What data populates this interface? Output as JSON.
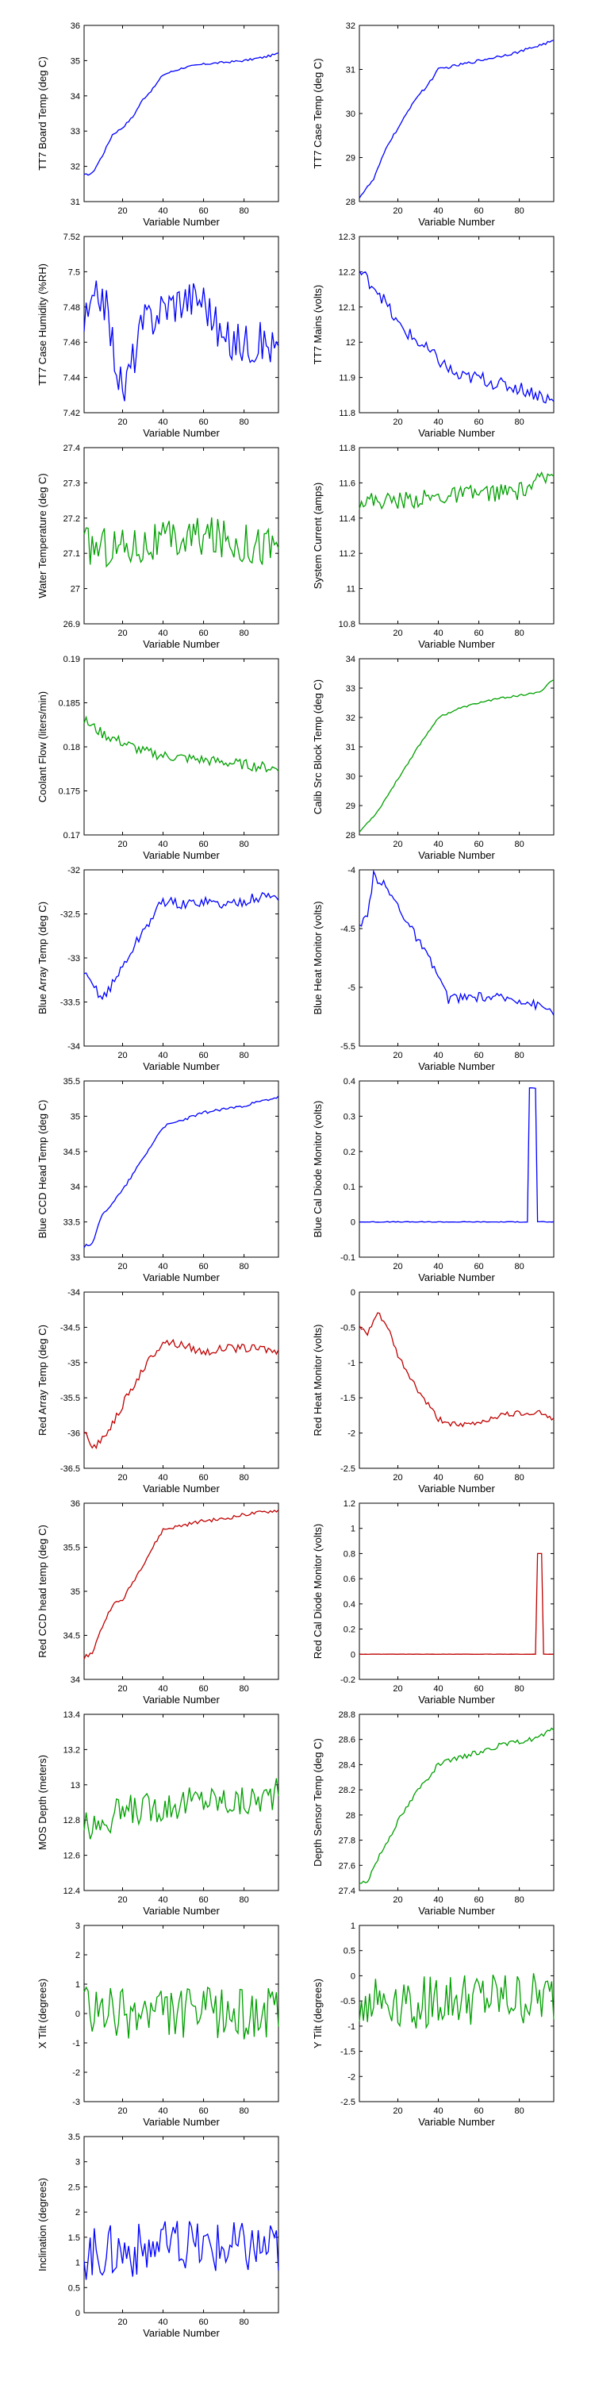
{
  "colors": {
    "blue": "#0000ff",
    "green": "#00a000",
    "red": "#c00000",
    "axis": "#000000"
  },
  "chart_data": [
    {
      "type": "line",
      "xlabel": "Variable Number",
      "ylabel": "TT7 Board Temp (deg C)",
      "ylim": [
        31,
        36
      ],
      "yticks": [
        "31",
        "32",
        "33",
        "34",
        "35",
        "36"
      ],
      "xlim": [
        1,
        97
      ],
      "xticks": [
        "20",
        "40",
        "60",
        "80"
      ],
      "color": "blue",
      "anchors": [
        [
          1,
          31.75
        ],
        [
          5,
          31.8
        ],
        [
          10,
          32.3
        ],
        [
          15,
          32.9
        ],
        [
          20,
          33.1
        ],
        [
          25,
          33.4
        ],
        [
          30,
          33.9
        ],
        [
          35,
          34.2
        ],
        [
          40,
          34.6
        ],
        [
          50,
          34.8
        ],
        [
          60,
          34.9
        ],
        [
          70,
          34.95
        ],
        [
          80,
          35.0
        ],
        [
          90,
          35.1
        ],
        [
          97,
          35.2
        ]
      ],
      "noise": 0.03
    },
    {
      "type": "line",
      "xlabel": "Variable Number",
      "ylabel": "TT7 Case Temp (deg C)",
      "ylim": [
        28,
        32
      ],
      "yticks": [
        "28",
        "29",
        "30",
        "31",
        "32"
      ],
      "xlim": [
        1,
        97
      ],
      "xticks": [
        "20",
        "40",
        "60",
        "80"
      ],
      "color": "blue",
      "anchors": [
        [
          1,
          28.1
        ],
        [
          8,
          28.5
        ],
        [
          15,
          29.3
        ],
        [
          22,
          29.8
        ],
        [
          28,
          30.3
        ],
        [
          34,
          30.6
        ],
        [
          40,
          31.0
        ],
        [
          50,
          31.1
        ],
        [
          60,
          31.2
        ],
        [
          70,
          31.3
        ],
        [
          80,
          31.4
        ],
        [
          90,
          31.55
        ],
        [
          97,
          31.65
        ]
      ],
      "noise": 0.03
    },
    {
      "type": "line",
      "xlabel": "Variable Number",
      "ylabel": "TT7 Case Humidity (%RH)",
      "ylim": [
        7.42,
        7.52
      ],
      "yticks": [
        "7.42",
        "7.44",
        "7.46",
        "7.48",
        "7.5",
        "7.52"
      ],
      "xlim": [
        1,
        97
      ],
      "xticks": [
        "20",
        "40",
        "60",
        "80"
      ],
      "color": "blue",
      "anchors": [
        [
          1,
          7.47
        ],
        [
          10,
          7.49
        ],
        [
          15,
          7.46
        ],
        [
          20,
          7.43
        ],
        [
          30,
          7.47
        ],
        [
          40,
          7.48
        ],
        [
          50,
          7.485
        ],
        [
          60,
          7.485
        ],
        [
          70,
          7.46
        ],
        [
          80,
          7.46
        ],
        [
          90,
          7.46
        ],
        [
          97,
          7.455
        ]
      ],
      "noise": 0.012
    },
    {
      "type": "line",
      "xlabel": "Variable Number",
      "ylabel": "TT7 Mains  (volts)",
      "ylim": [
        11.8,
        12.3
      ],
      "yticks": [
        "11.8",
        "11.9",
        "12",
        "12.1",
        "12.2",
        "12.3"
      ],
      "xlim": [
        1,
        97
      ],
      "xticks": [
        "20",
        "40",
        "60",
        "80"
      ],
      "color": "blue",
      "anchors": [
        [
          1,
          12.2
        ],
        [
          10,
          12.15
        ],
        [
          20,
          12.05
        ],
        [
          30,
          12.0
        ],
        [
          40,
          11.95
        ],
        [
          50,
          11.9
        ],
        [
          60,
          11.9
        ],
        [
          70,
          11.88
        ],
        [
          80,
          11.87
        ],
        [
          90,
          11.85
        ],
        [
          97,
          11.83
        ]
      ],
      "noise": 0.02
    },
    {
      "type": "line",
      "xlabel": "Variable Number",
      "ylabel": "Water Temperature (deg C)",
      "ylim": [
        26.9,
        27.4
      ],
      "yticks": [
        "26.9",
        "27",
        "27.1",
        "27.2",
        "27.3",
        "27.4"
      ],
      "xlim": [
        1,
        97
      ],
      "xticks": [
        "20",
        "40",
        "60",
        "80"
      ],
      "color": "green",
      "anchors": [
        [
          1,
          27.12
        ],
        [
          20,
          27.12
        ],
        [
          40,
          27.13
        ],
        [
          60,
          27.15
        ],
        [
          80,
          27.13
        ],
        [
          97,
          27.12
        ]
      ],
      "noise": 0.06
    },
    {
      "type": "line",
      "xlabel": "Variable Number",
      "ylabel": "System Current (amps)",
      "ylim": [
        10.8,
        11.8
      ],
      "yticks": [
        "10.8",
        "11",
        "11.2",
        "11.4",
        "11.6",
        "11.8"
      ],
      "xlim": [
        1,
        97
      ],
      "xticks": [
        "20",
        "40",
        "60",
        "80"
      ],
      "color": "green",
      "anchors": [
        [
          1,
          11.5
        ],
        [
          20,
          11.5
        ],
        [
          40,
          11.52
        ],
        [
          60,
          11.54
        ],
        [
          80,
          11.55
        ],
        [
          97,
          11.65
        ]
      ],
      "noise": 0.05
    },
    {
      "type": "line",
      "xlabel": "Variable Number",
      "ylabel": "Coolant Flow  (liters/min)",
      "ylim": [
        0.17,
        0.19
      ],
      "yticks": [
        "0.17",
        "0.175",
        "0.18",
        "0.185",
        "0.19"
      ],
      "xlim": [
        1,
        97
      ],
      "xticks": [
        "20",
        "40",
        "60",
        "80"
      ],
      "color": "green",
      "anchors": [
        [
          1,
          0.183
        ],
        [
          10,
          0.1815
        ],
        [
          20,
          0.1805
        ],
        [
          30,
          0.1795
        ],
        [
          40,
          0.179
        ],
        [
          60,
          0.1785
        ],
        [
          80,
          0.178
        ],
        [
          97,
          0.1775
        ]
      ],
      "noise": 0.0006
    },
    {
      "type": "line",
      "xlabel": "Variable Number",
      "ylabel": "Calib Src Block Temp (deg C)",
      "ylim": [
        28,
        34
      ],
      "yticks": [
        "28",
        "29",
        "30",
        "31",
        "32",
        "33",
        "34"
      ],
      "xlim": [
        1,
        97
      ],
      "xticks": [
        "20",
        "40",
        "60",
        "80"
      ],
      "color": "green",
      "anchors": [
        [
          1,
          28.1
        ],
        [
          10,
          28.8
        ],
        [
          20,
          29.9
        ],
        [
          30,
          31.0
        ],
        [
          40,
          32.0
        ],
        [
          50,
          32.3
        ],
        [
          60,
          32.5
        ],
        [
          70,
          32.65
        ],
        [
          80,
          32.75
        ],
        [
          90,
          32.85
        ],
        [
          95,
          33.2
        ],
        [
          97,
          33.3
        ]
      ],
      "noise": 0.03
    },
    {
      "type": "line",
      "xlabel": "Variable Number",
      "ylabel": "Blue Array Temp (deg C)",
      "ylim": [
        -34,
        -32
      ],
      "yticks": [
        "-34",
        "-33.5",
        "-33",
        "-32.5",
        "-32"
      ],
      "xlim": [
        1,
        97
      ],
      "xticks": [
        "20",
        "40",
        "60",
        "80"
      ],
      "color": "blue",
      "anchors": [
        [
          1,
          -33.2
        ],
        [
          5,
          -33.3
        ],
        [
          10,
          -33.45
        ],
        [
          15,
          -33.3
        ],
        [
          20,
          -33.1
        ],
        [
          30,
          -32.7
        ],
        [
          40,
          -32.35
        ],
        [
          50,
          -32.4
        ],
        [
          60,
          -32.35
        ],
        [
          70,
          -32.4
        ],
        [
          80,
          -32.35
        ],
        [
          90,
          -32.3
        ],
        [
          97,
          -32.3
        ]
      ],
      "noise": 0.06
    },
    {
      "type": "line",
      "xlabel": "Variable Number",
      "ylabel": "Blue Heat Monitor  (volts)",
      "ylim": [
        -5.5,
        -4
      ],
      "yticks": [
        "-5.5",
        "-5",
        "-4.5",
        "-4"
      ],
      "xlim": [
        1,
        97
      ],
      "xticks": [
        "20",
        "40",
        "60",
        "80"
      ],
      "color": "blue",
      "anchors": [
        [
          1,
          -4.5
        ],
        [
          5,
          -4.4
        ],
        [
          8,
          -4.05
        ],
        [
          12,
          -4.1
        ],
        [
          20,
          -4.3
        ],
        [
          30,
          -4.6
        ],
        [
          40,
          -4.9
        ],
        [
          45,
          -5.1
        ],
        [
          60,
          -5.08
        ],
        [
          80,
          -5.1
        ],
        [
          97,
          -5.2
        ]
      ],
      "noise": 0.04
    },
    {
      "type": "line",
      "xlabel": "Variable Number",
      "ylabel": "Blue CCD Head Temp (deg C)",
      "ylim": [
        33,
        35.5
      ],
      "yticks": [
        "33",
        "33.5",
        "34",
        "34.5",
        "35",
        "35.5"
      ],
      "xlim": [
        1,
        97
      ],
      "xticks": [
        "20",
        "40",
        "60",
        "80"
      ],
      "color": "blue",
      "anchors": [
        [
          1,
          33.15
        ],
        [
          5,
          33.2
        ],
        [
          10,
          33.6
        ],
        [
          20,
          33.95
        ],
        [
          30,
          34.4
        ],
        [
          40,
          34.85
        ],
        [
          50,
          34.95
        ],
        [
          60,
          35.05
        ],
        [
          70,
          35.1
        ],
        [
          80,
          35.15
        ],
        [
          90,
          35.22
        ],
        [
          97,
          35.27
        ]
      ],
      "noise": 0.02
    },
    {
      "type": "line",
      "xlabel": "Variable Number",
      "ylabel": "Blue Cal Diode Monitor  (volts)",
      "ylim": [
        -0.1,
        0.4
      ],
      "yticks": [
        "-0.1",
        "0",
        "0.1",
        "0.2",
        "0.3",
        "0.4"
      ],
      "xlim": [
        1,
        97
      ],
      "xticks": [
        "20",
        "40",
        "60",
        "80"
      ],
      "color": "blue",
      "anchors": [
        [
          1,
          0
        ],
        [
          84,
          0
        ],
        [
          85,
          0.38
        ],
        [
          88,
          0.38
        ],
        [
          89,
          0
        ],
        [
          97,
          0
        ]
      ],
      "noise": 0.001
    },
    {
      "type": "line",
      "xlabel": "Variable Number",
      "ylabel": "Red Array Temp (deg C)",
      "ylim": [
        -36.5,
        -34
      ],
      "yticks": [
        "-36.5",
        "-36",
        "-35.5",
        "-35",
        "-34.5",
        "-34"
      ],
      "xlim": [
        1,
        97
      ],
      "xticks": [
        "20",
        "40",
        "60",
        "80"
      ],
      "color": "red",
      "anchors": [
        [
          1,
          -36
        ],
        [
          5,
          -36.2
        ],
        [
          10,
          -36.1
        ],
        [
          20,
          -35.6
        ],
        [
          30,
          -35.1
        ],
        [
          40,
          -34.7
        ],
        [
          50,
          -34.75
        ],
        [
          60,
          -34.85
        ],
        [
          70,
          -34.8
        ],
        [
          80,
          -34.8
        ],
        [
          90,
          -34.8
        ],
        [
          97,
          -34.85
        ]
      ],
      "noise": 0.06
    },
    {
      "type": "line",
      "xlabel": "Variable Number",
      "ylabel": "Red Heat Monitor  (volts)",
      "ylim": [
        -2.5,
        0
      ],
      "yticks": [
        "-2.5",
        "-2",
        "-1.5",
        "-1",
        "-0.5",
        "0"
      ],
      "xlim": [
        1,
        97
      ],
      "xticks": [
        "20",
        "40",
        "60",
        "80"
      ],
      "color": "red",
      "anchors": [
        [
          1,
          -0.5
        ],
        [
          5,
          -0.6
        ],
        [
          10,
          -0.3
        ],
        [
          15,
          -0.5
        ],
        [
          20,
          -0.9
        ],
        [
          30,
          -1.4
        ],
        [
          40,
          -1.8
        ],
        [
          50,
          -1.9
        ],
        [
          60,
          -1.85
        ],
        [
          70,
          -1.75
        ],
        [
          80,
          -1.72
        ],
        [
          90,
          -1.7
        ],
        [
          97,
          -1.8
        ]
      ],
      "noise": 0.04
    },
    {
      "type": "line",
      "xlabel": "Variable Number",
      "ylabel": "Red CCD head temp (deg C)",
      "ylim": [
        34,
        36
      ],
      "yticks": [
        "34",
        "34.5",
        "35",
        "35.5",
        "36"
      ],
      "xlim": [
        1,
        97
      ],
      "xticks": [
        "20",
        "40",
        "60",
        "80"
      ],
      "color": "red",
      "anchors": [
        [
          1,
          34.25
        ],
        [
          5,
          34.3
        ],
        [
          10,
          34.6
        ],
        [
          15,
          34.85
        ],
        [
          20,
          34.9
        ],
        [
          30,
          35.3
        ],
        [
          40,
          35.7
        ],
        [
          50,
          35.75
        ],
        [
          60,
          35.8
        ],
        [
          70,
          35.82
        ],
        [
          80,
          35.87
        ],
        [
          90,
          35.9
        ],
        [
          97,
          35.92
        ]
      ],
      "noise": 0.02
    },
    {
      "type": "line",
      "xlabel": "Variable Number",
      "ylabel": "Red Cal Diode Monitor  (volts)",
      "ylim": [
        -0.2,
        1.2
      ],
      "yticks": [
        "-0.2",
        "0",
        "0.2",
        "0.4",
        "0.6",
        "0.8",
        "1",
        "1.2"
      ],
      "xlim": [
        1,
        97
      ],
      "xticks": [
        "20",
        "40",
        "60",
        "80"
      ],
      "color": "red",
      "anchors": [
        [
          1,
          0
        ],
        [
          88,
          0
        ],
        [
          89,
          0.8
        ],
        [
          91,
          0.8
        ],
        [
          92,
          0
        ],
        [
          97,
          0
        ]
      ],
      "noise": 0.001
    },
    {
      "type": "line",
      "xlabel": "Variable Number",
      "ylabel": "MOS Depth  (meters)",
      "ylim": [
        12.4,
        13.4
      ],
      "yticks": [
        "12.4",
        "12.6",
        "12.8",
        "13",
        "13.2",
        "13.4"
      ],
      "xlim": [
        1,
        97
      ],
      "xticks": [
        "20",
        "40",
        "60",
        "80"
      ],
      "color": "green",
      "anchors": [
        [
          1,
          12.75
        ],
        [
          20,
          12.85
        ],
        [
          40,
          12.88
        ],
        [
          60,
          12.92
        ],
        [
          80,
          12.9
        ],
        [
          97,
          12.95
        ]
      ],
      "noise": 0.09
    },
    {
      "type": "line",
      "xlabel": "Variable Number",
      "ylabel": "Depth Sensor Temp (deg C)",
      "ylim": [
        27.4,
        28.8
      ],
      "yticks": [
        "27.4",
        "27.6",
        "27.8",
        "28",
        "28.2",
        "28.4",
        "28.6",
        "28.8"
      ],
      "xlim": [
        1,
        97
      ],
      "xticks": [
        "20",
        "40",
        "60",
        "80"
      ],
      "color": "green",
      "anchors": [
        [
          1,
          27.45
        ],
        [
          5,
          27.48
        ],
        [
          10,
          27.65
        ],
        [
          20,
          27.95
        ],
        [
          30,
          28.2
        ],
        [
          40,
          28.4
        ],
        [
          50,
          28.45
        ],
        [
          60,
          28.5
        ],
        [
          70,
          28.55
        ],
        [
          80,
          28.58
        ],
        [
          90,
          28.62
        ],
        [
          97,
          28.68
        ]
      ],
      "noise": 0.02
    },
    {
      "type": "line",
      "xlabel": "Variable Number",
      "ylabel": "X Tilt  (degrees)",
      "ylim": [
        -3,
        3
      ],
      "yticks": [
        "-3",
        "-2",
        "-1",
        "0",
        "1",
        "2",
        "3"
      ],
      "xlim": [
        1,
        97
      ],
      "xticks": [
        "20",
        "40",
        "60",
        "80"
      ],
      "color": "green",
      "anchors": [
        [
          1,
          0
        ],
        [
          97,
          0
        ]
      ],
      "noise": 0.9
    },
    {
      "type": "line",
      "xlabel": "Variable Number",
      "ylabel": "Y Tilt  (degrees)",
      "ylim": [
        -2.5,
        1
      ],
      "yticks": [
        "-2.5",
        "-2",
        "-1.5",
        "-1",
        "-0.5",
        "0",
        "0.5",
        "1"
      ],
      "xlim": [
        1,
        97
      ],
      "xticks": [
        "20",
        "40",
        "60",
        "80"
      ],
      "color": "green",
      "anchors": [
        [
          1,
          -0.5
        ],
        [
          97,
          -0.5
        ]
      ],
      "noise": 0.55
    },
    {
      "type": "line",
      "xlabel": "Variable Number",
      "ylabel": "Inclination  (degrees)",
      "ylim": [
        0,
        3.5
      ],
      "yticks": [
        "0",
        "0.5",
        "1",
        "1.5",
        "2",
        "2.5",
        "3",
        "3.5"
      ],
      "xlim": [
        1,
        97
      ],
      "xticks": [
        "20",
        "40",
        "60",
        "80"
      ],
      "color": "blue",
      "anchors": [
        [
          1,
          1.2
        ],
        [
          40,
          1.3
        ],
        [
          97,
          1.3
        ]
      ],
      "noise": 0.55
    }
  ]
}
